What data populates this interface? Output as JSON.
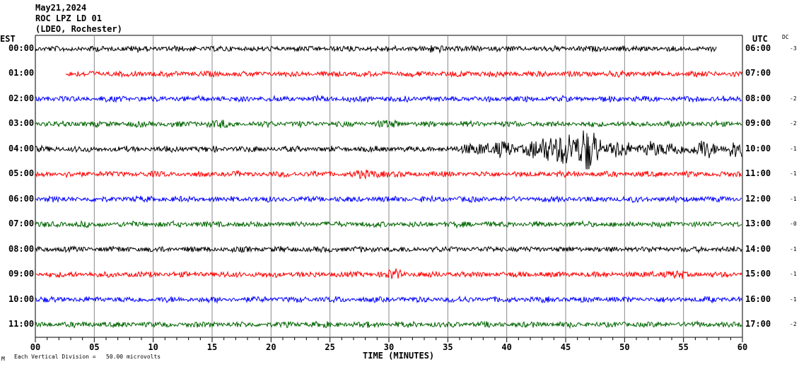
{
  "header": {
    "date": "May21,2024",
    "station": "ROC LPZ LD 01",
    "network": "(LDEO, Rochester)"
  },
  "left_axis_title": "EST",
  "right_axis_title": "UTC",
  "dc_title": "DC",
  "footer": {
    "scale_note": "Each Vertical Division =   50.00 microvolts",
    "corner_mark": "M"
  },
  "chart_data": {
    "type": "line",
    "subtype": "helicorder",
    "xlabel": "TIME (MINUTES)",
    "xlim": [
      0,
      60
    ],
    "x_ticks": [
      "00",
      "05",
      "10",
      "15",
      "20",
      "25",
      "30",
      "35",
      "40",
      "45",
      "50",
      "55",
      "60"
    ],
    "minor_tick_interval_minutes": 1,
    "grid": "vertical every 5 minutes",
    "rows": [
      {
        "est": "00:00",
        "utc": "06:00",
        "dc": "-3",
        "color": "#000000",
        "start_min": 0,
        "end_min": 57.8
      },
      {
        "est": "01:00",
        "utc": "07:00",
        "dc": "",
        "color": "#ff0000",
        "start_min": 2.6,
        "end_min": 60
      },
      {
        "est": "02:00",
        "utc": "08:00",
        "dc": "-2",
        "color": "#0000ff",
        "start_min": 0,
        "end_min": 60
      },
      {
        "est": "03:00",
        "utc": "09:00",
        "dc": "-2",
        "color": "#006400",
        "start_min": 0,
        "end_min": 60
      },
      {
        "est": "04:00",
        "utc": "10:00",
        "dc": "-1",
        "color": "#000000",
        "start_min": 0,
        "end_min": 60
      },
      {
        "est": "05:00",
        "utc": "11:00",
        "dc": "-1",
        "color": "#ff0000",
        "start_min": 0,
        "end_min": 60
      },
      {
        "est": "06:00",
        "utc": "12:00",
        "dc": "-1",
        "color": "#0000ff",
        "start_min": 0,
        "end_min": 60
      },
      {
        "est": "07:00",
        "utc": "13:00",
        "dc": "-0",
        "color": "#006400",
        "start_min": 0,
        "end_min": 60
      },
      {
        "est": "08:00",
        "utc": "14:00",
        "dc": "-1",
        "color": "#000000",
        "start_min": 0,
        "end_min": 60
      },
      {
        "est": "09:00",
        "utc": "15:00",
        "dc": "-1",
        "color": "#ff0000",
        "start_min": 0,
        "end_min": 60
      },
      {
        "est": "10:00",
        "utc": "16:00",
        "dc": "-1",
        "color": "#0000ff",
        "start_min": 0,
        "end_min": 60
      },
      {
        "est": "11:00",
        "utc": "17:00",
        "dc": "-2",
        "color": "#006400",
        "start_min": 0,
        "end_min": 60
      }
    ]
  }
}
